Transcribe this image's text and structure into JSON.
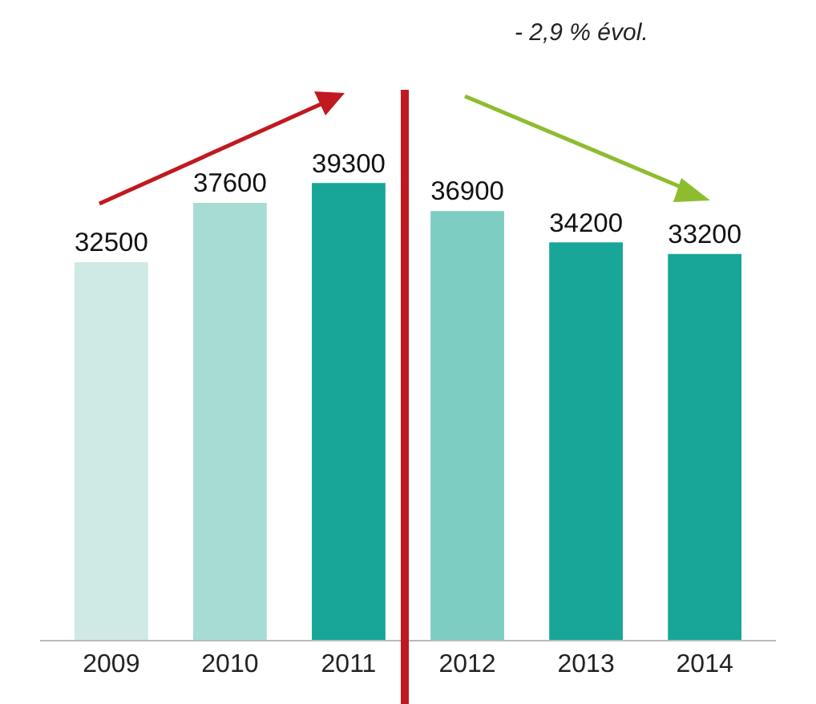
{
  "chart_data": {
    "type": "bar",
    "categories": [
      "2009",
      "2010",
      "2011",
      "2012",
      "2013",
      "2014"
    ],
    "values": [
      32500,
      37600,
      39300,
      36900,
      34200,
      33200
    ],
    "colors": [
      "#cfe9e5",
      "#a6dcd4",
      "#17a697",
      "#7dcdc3",
      "#17a697",
      "#17a697"
    ],
    "data_labels": true,
    "annotations": [
      "- 2,9 % évol."
    ],
    "grid": false
  }
}
